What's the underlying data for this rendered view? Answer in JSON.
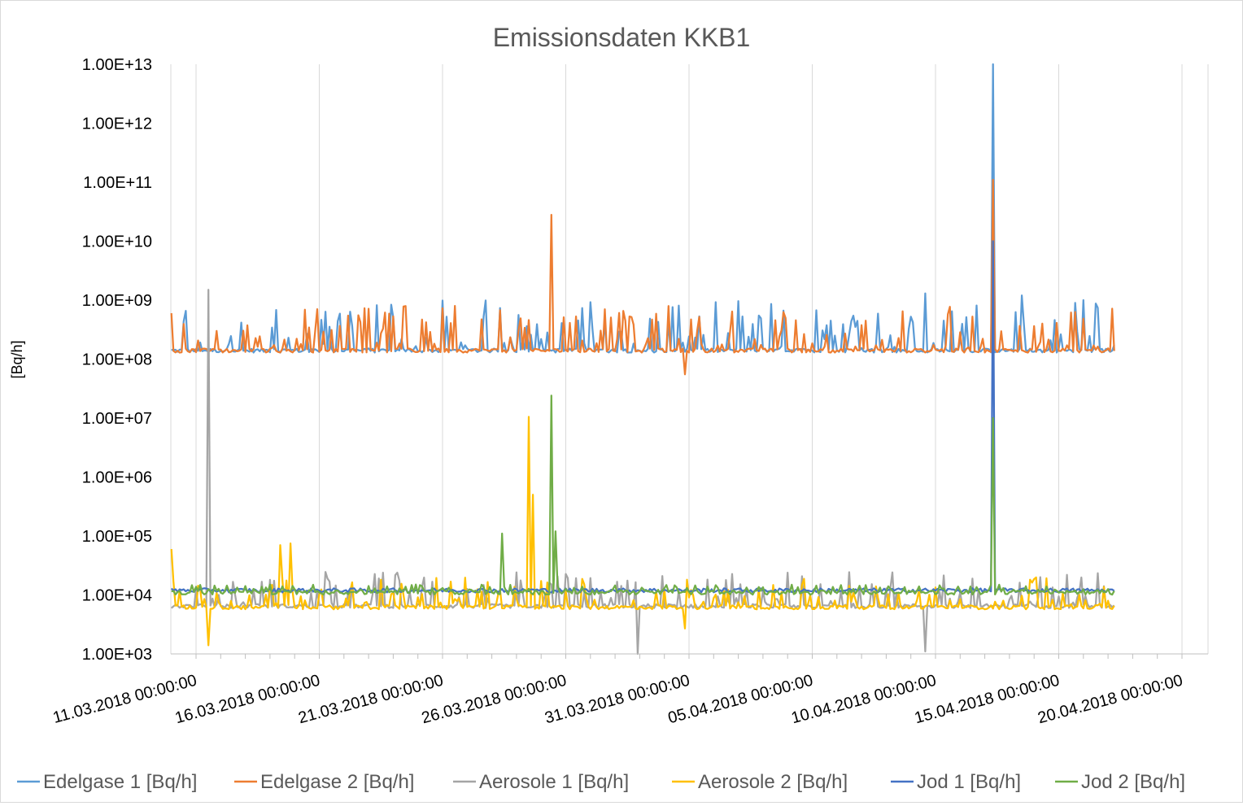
{
  "chart_data": {
    "type": "line",
    "title": "Emissionsdaten KKB1",
    "ylabel": "[Bq/h]",
    "xlabel": "",
    "yscale": "log",
    "ylim": [
      1000,
      10000000000000
    ],
    "yticks": [
      "1.00E+03",
      "1.00E+04",
      "1.00E+05",
      "1.00E+06",
      "1.00E+07",
      "1.00E+08",
      "1.00E+09",
      "1.00E+10",
      "1.00E+11",
      "1.00E+12",
      "1.00E+13"
    ],
    "xlim": [
      "2018-03-11",
      "2018-04-20"
    ],
    "xticks": [
      "11.03.2018 00:00:00",
      "16.03.2018 00:00:00",
      "21.03.2018 00:00:00",
      "26.03.2018 00:00:00",
      "31.03.2018 00:00:00",
      "05.04.2018 00:00:00",
      "10.04.2018 00:00:00",
      "15.04.2018 00:00:00",
      "20.04.2018 00:00:00"
    ],
    "grid": "vertical",
    "legend": "bottom",
    "series": [
      {
        "name": "Edelgase 1 [Bq/h]",
        "color": "#5b9bd5",
        "baseline": 140000000,
        "peak": 1000000000,
        "spikes": [
          [
            "2018-04-12T08:00",
            10000000000000
          ],
          [
            "2018-04-09T14:00",
            1300000000
          ],
          [
            "2018-04-13T12:00",
            1200000000
          ],
          [
            "2018-04-16T00:00",
            1000000000
          ]
        ]
      },
      {
        "name": "Edelgase 2 [Bq/h]",
        "color": "#ed7d31",
        "baseline": 140000000,
        "peak": 800000000,
        "spikes": [
          [
            "2018-03-25T10:00",
            28000000000
          ],
          [
            "2018-04-12T08:00",
            110000000000
          ],
          [
            "2018-03-30T20:00",
            55000000
          ]
        ]
      },
      {
        "name": "Aerosole 1 [Bq/h]",
        "color": "#a5a5a5",
        "baseline": 6500,
        "peak": 25000,
        "spikes": [
          [
            "2018-03-11T12:00",
            1500000000
          ],
          [
            "2018-03-28T22:00",
            1000
          ],
          [
            "2018-04-09T14:00",
            1100
          ]
        ]
      },
      {
        "name": "Aerosole 2 [Bq/h]",
        "color": "#ffc000",
        "baseline": 6200,
        "peak": 20000,
        "spikes": [
          [
            "2018-03-10T00:00",
            60000
          ],
          [
            "2018-03-24T12:00",
            10500000
          ],
          [
            "2018-03-24T16:00",
            500000
          ],
          [
            "2018-03-11T12:00",
            1400
          ],
          [
            "2018-03-14T10:00",
            70000
          ],
          [
            "2018-03-14T20:00",
            75000
          ],
          [
            "2018-03-30T20:00",
            2700
          ]
        ]
      },
      {
        "name": "Jod 1 [Bq/h]",
        "color": "#4472c4",
        "baseline": 12000,
        "peak": 12000,
        "spikes": [
          [
            "2018-04-12T08:00",
            10000000000
          ]
        ]
      },
      {
        "name": "Jod 2 [Bq/h]",
        "color": "#70ad47",
        "baseline": 11000,
        "peak": 15000,
        "spikes": [
          [
            "2018-03-25T10:00",
            24000000
          ],
          [
            "2018-03-23T10:00",
            110000
          ],
          [
            "2018-04-12T08:00",
            10000000
          ],
          [
            "2018-03-25T14:00",
            120000
          ]
        ]
      }
    ]
  }
}
